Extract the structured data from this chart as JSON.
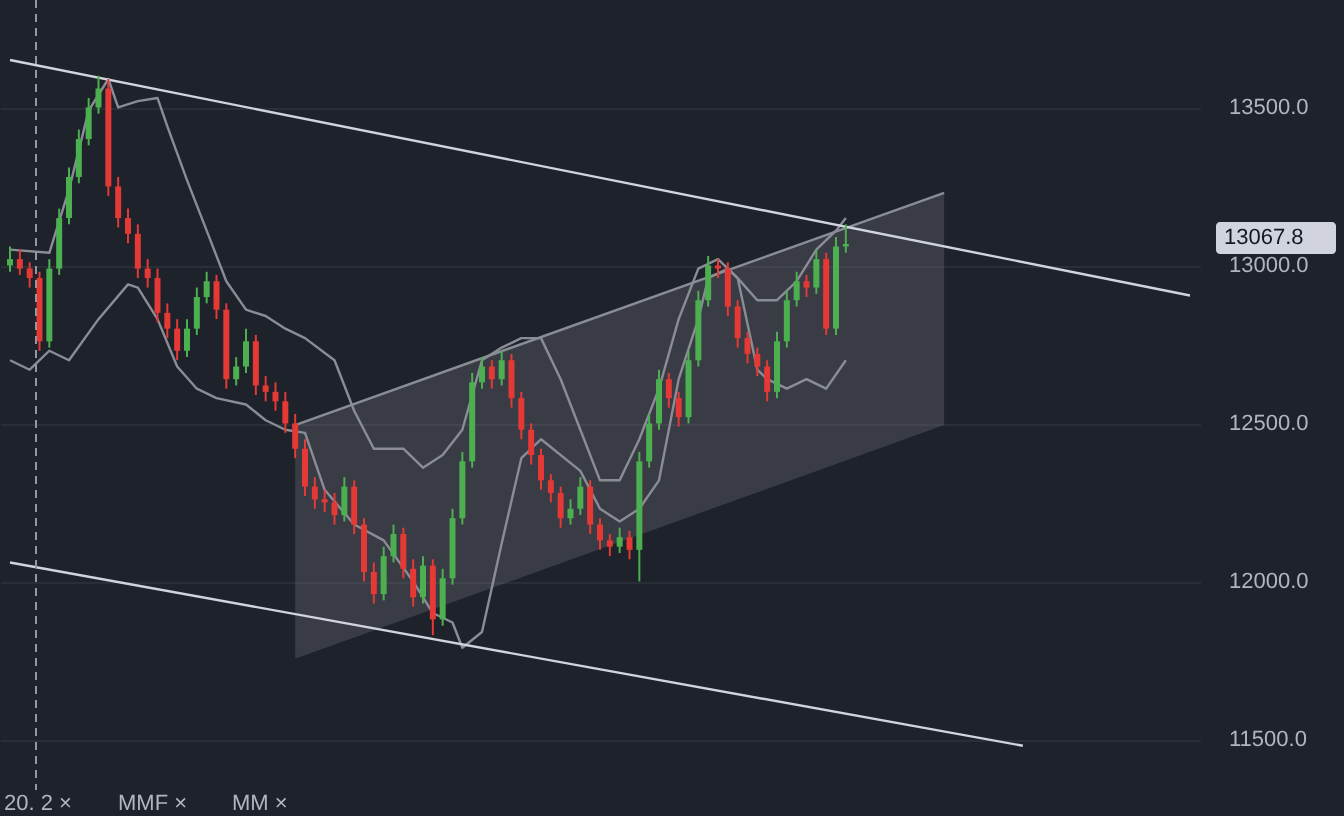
{
  "chart_data": {
    "type": "candlestick",
    "categories": [
      null,
      null,
      null,
      null,
      null,
      null,
      null,
      null,
      null,
      null,
      null,
      null,
      null,
      null,
      null,
      null,
      null,
      null,
      null,
      null,
      null,
      null,
      null,
      null,
      null,
      null,
      null,
      null,
      null,
      null,
      null,
      null,
      null,
      null,
      null,
      null,
      null,
      null,
      null,
      null,
      null,
      null,
      null,
      null,
      null,
      null,
      null,
      null,
      null,
      null,
      null,
      null,
      null,
      null,
      null,
      null,
      null,
      null,
      null,
      null,
      null,
      null,
      null,
      null,
      null,
      null,
      null,
      null,
      null,
      null,
      null,
      null,
      null,
      null,
      null,
      null,
      null,
      null,
      null,
      null,
      null,
      null,
      null,
      null,
      null,
      null,
      null,
      null,
      null,
      null,
      null,
      null,
      null,
      null,
      null,
      null,
      null,
      null,
      null,
      null,
      null,
      null,
      null,
      null,
      null,
      null,
      null,
      null,
      null,
      null,
      null,
      null,
      null,
      null,
      null,
      null,
      null,
      null,
      null,
      null,
      null
    ],
    "ohlc": [
      [
        13000,
        13060,
        12980,
        13020
      ],
      [
        13020,
        13050,
        12970,
        12990
      ],
      [
        12990,
        13010,
        12930,
        12960
      ],
      [
        12960,
        12980,
        12730,
        12760
      ],
      [
        12760,
        13020,
        12740,
        12990
      ],
      [
        12990,
        13180,
        12970,
        13150
      ],
      [
        13150,
        13310,
        13130,
        13280
      ],
      [
        13280,
        13430,
        13260,
        13400
      ],
      [
        13400,
        13530,
        13380,
        13500
      ],
      [
        13500,
        13600,
        13480,
        13560
      ],
      [
        13560,
        13590,
        13220,
        13250
      ],
      [
        13250,
        13280,
        13120,
        13150
      ],
      [
        13150,
        13180,
        13070,
        13100
      ],
      [
        13100,
        13130,
        12960,
        12990
      ],
      [
        12990,
        13020,
        12930,
        12960
      ],
      [
        12960,
        12990,
        12820,
        12850
      ],
      [
        12850,
        12880,
        12770,
        12800
      ],
      [
        12800,
        12830,
        12700,
        12730
      ],
      [
        12730,
        12830,
        12710,
        12800
      ],
      [
        12800,
        12930,
        12780,
        12900
      ],
      [
        12900,
        12980,
        12880,
        12950
      ],
      [
        12950,
        12970,
        12830,
        12860
      ],
      [
        12860,
        12880,
        12610,
        12640
      ],
      [
        12640,
        12710,
        12620,
        12680
      ],
      [
        12680,
        12800,
        12660,
        12760
      ],
      [
        12760,
        12780,
        12590,
        12620
      ],
      [
        12620,
        12650,
        12570,
        12600
      ],
      [
        12600,
        12630,
        12540,
        12570
      ],
      [
        12570,
        12600,
        12470,
        12500
      ],
      [
        12500,
        12530,
        12390,
        12420
      ],
      [
        12420,
        12450,
        12270,
        12300
      ],
      [
        12300,
        12330,
        12230,
        12260
      ],
      [
        12260,
        12290,
        12220,
        12250
      ],
      [
        12250,
        12280,
        12180,
        12210
      ],
      [
        12210,
        12330,
        12190,
        12300
      ],
      [
        12300,
        12320,
        12150,
        12180
      ],
      [
        12180,
        12200,
        12000,
        12030
      ],
      [
        12030,
        12060,
        11930,
        11960
      ],
      [
        11960,
        12110,
        11940,
        12080
      ],
      [
        12080,
        12180,
        12060,
        12150
      ],
      [
        12150,
        12170,
        12010,
        12040
      ],
      [
        12040,
        12070,
        11920,
        11950
      ],
      [
        11950,
        12080,
        11930,
        12050
      ],
      [
        12050,
        12070,
        11830,
        11880
      ],
      [
        11880,
        12040,
        11860,
        12010
      ],
      [
        12010,
        12230,
        11990,
        12200
      ],
      [
        12200,
        12410,
        12180,
        12380
      ],
      [
        12380,
        12660,
        12360,
        12630
      ],
      [
        12630,
        12710,
        12610,
        12680
      ],
      [
        12680,
        12700,
        12610,
        12640
      ],
      [
        12640,
        12730,
        12620,
        12700
      ],
      [
        12700,
        12720,
        12550,
        12580
      ],
      [
        12580,
        12600,
        12450,
        12480
      ],
      [
        12480,
        12500,
        12370,
        12400
      ],
      [
        12400,
        12420,
        12290,
        12320
      ],
      [
        12320,
        12340,
        12250,
        12280
      ],
      [
        12280,
        12300,
        12170,
        12200
      ],
      [
        12200,
        12260,
        12180,
        12230
      ],
      [
        12230,
        12330,
        12210,
        12300
      ],
      [
        12300,
        12320,
        12150,
        12180
      ],
      [
        12180,
        12200,
        12100,
        12130
      ],
      [
        12130,
        12150,
        12080,
        12110
      ],
      [
        12110,
        12170,
        12090,
        12140
      ],
      [
        12140,
        12160,
        12070,
        12100
      ],
      [
        12100,
        12410,
        12000,
        12380
      ],
      [
        12380,
        12530,
        12360,
        12500
      ],
      [
        12500,
        12670,
        12480,
        12640
      ],
      [
        12640,
        12660,
        12550,
        12580
      ],
      [
        12580,
        12600,
        12490,
        12520
      ],
      [
        12520,
        12730,
        12500,
        12700
      ],
      [
        12700,
        12920,
        12680,
        12890
      ],
      [
        12890,
        13030,
        12870,
        13000
      ],
      [
        13000,
        13020,
        12960,
        12990
      ],
      [
        12990,
        13010,
        12840,
        12870
      ],
      [
        12870,
        12890,
        12740,
        12770
      ],
      [
        12770,
        12790,
        12690,
        12720
      ],
      [
        12720,
        12740,
        12650,
        12680
      ],
      [
        12680,
        12700,
        12570,
        12600
      ],
      [
        12600,
        12790,
        12580,
        12760
      ],
      [
        12760,
        12920,
        12740,
        12890
      ],
      [
        12890,
        12980,
        12870,
        12950
      ],
      [
        12950,
        12970,
        12900,
        12930
      ],
      [
        12930,
        13050,
        12910,
        13020
      ],
      [
        13020,
        13040,
        12780,
        12800
      ],
      [
        12800,
        13090,
        12780,
        13060
      ],
      [
        13060,
        13130,
        13040,
        13067.8
      ],
      null,
      null,
      null,
      null,
      null,
      null,
      null,
      null,
      null,
      null,
      null,
      null,
      null,
      null,
      null,
      null,
      null,
      null,
      null,
      null,
      null,
      null,
      null,
      null,
      null,
      null,
      null,
      null,
      null,
      null,
      null,
      null,
      null,
      null,
      null
    ],
    "series": [
      {
        "type": "line",
        "color": "#8a8d96",
        "upper": [
          null,
          null,
          null,
          null,
          null,
          null,
          null,
          null,
          null,
          null,
          null,
          null,
          null,
          null,
          null,
          null,
          null,
          null,
          null,
          null,
          null,
          null,
          null,
          null,
          null,
          null,
          null,
          null,
          null,
          12495,
          null,
          null,
          null,
          null,
          null,
          null,
          null,
          null,
          null,
          null,
          null,
          null,
          null,
          null,
          null,
          null,
          null,
          null,
          null,
          null,
          null,
          null,
          null,
          null,
          null,
          null,
          null,
          null,
          null,
          null,
          null,
          null,
          null,
          null,
          null,
          null,
          null,
          null,
          null,
          null,
          null,
          null,
          null,
          null,
          null,
          null,
          null,
          null,
          null,
          null,
          null,
          null,
          null,
          null,
          null,
          null,
          null,
          null,
          null,
          null,
          null,
          null,
          null,
          null,
          null,
          13230,
          null,
          null,
          null,
          null,
          null,
          null,
          null,
          null,
          null,
          null,
          null,
          null,
          null,
          null,
          null,
          null,
          null,
          null,
          null,
          null,
          null,
          null,
          null,
          null,
          null
        ],
        "values": [
          null,
          null,
          null,
          null,
          null,
          null,
          null,
          null,
          null,
          null,
          null,
          null,
          null,
          null,
          null,
          null,
          null,
          null,
          null,
          null,
          null,
          null,
          null,
          null,
          null,
          null,
          null,
          null,
          null,
          12495,
          null,
          null,
          null,
          null,
          null,
          null,
          null,
          null,
          null,
          null,
          null,
          null,
          null,
          null,
          null,
          null,
          null,
          null,
          null,
          null,
          null,
          null,
          null,
          null,
          null,
          null,
          null,
          null,
          null,
          null,
          null,
          null,
          null,
          null,
          null,
          null,
          null,
          null,
          null,
          null,
          null,
          null,
          null,
          null,
          null,
          null,
          null,
          null,
          null,
          null,
          null,
          null,
          null,
          null,
          null,
          null,
          null,
          null,
          null,
          null,
          null,
          null,
          null,
          null,
          null,
          13230,
          null,
          null,
          null,
          null,
          null,
          null,
          null,
          null,
          null,
          null,
          null,
          null,
          null,
          null,
          null,
          null,
          null,
          null,
          null,
          null,
          null,
          null,
          null,
          null,
          null
        ],
        "lower": [
          null,
          null,
          null,
          null,
          null,
          null,
          null,
          null,
          null,
          null,
          null,
          null,
          null,
          null,
          null,
          null,
          null,
          null,
          null,
          null,
          null,
          null,
          null,
          null,
          null,
          null,
          null,
          null,
          null,
          11755,
          null,
          null,
          null,
          null,
          null,
          null,
          null,
          null,
          null,
          null,
          null,
          null,
          null,
          null,
          null,
          null,
          null,
          null,
          null,
          null,
          null,
          null,
          null,
          null,
          null,
          null,
          null,
          null,
          null,
          null,
          null,
          null,
          null,
          null,
          null,
          null,
          null,
          null,
          null,
          null,
          null,
          null,
          null,
          null,
          null,
          null,
          null,
          null,
          null,
          null,
          null,
          null,
          null,
          null,
          null,
          null,
          null,
          null,
          null,
          null,
          null,
          null,
          null,
          null,
          null,
          12495,
          null,
          null,
          null,
          null,
          null,
          null,
          null,
          null,
          null,
          null,
          null,
          null,
          null,
          null,
          null,
          null,
          null,
          null,
          null,
          null,
          null,
          null,
          null,
          null,
          null
        ]
      },
      {
        "type": "line",
        "color": "#8a8d96",
        "values": [
          13050,
          null,
          null,
          null,
          13040,
          null,
          13240,
          null,
          13490,
          null,
          13590,
          13500,
          null,
          13520,
          null,
          13530,
          13440,
          null,
          13270,
          null,
          13110,
          null,
          12950,
          null,
          12860,
          null,
          12840,
          null,
          12800,
          null,
          12770,
          null,
          null,
          12700,
          null,
          12540,
          null,
          12420,
          null,
          null,
          12420,
          null,
          12360,
          null,
          12400,
          null,
          12480,
          null,
          12700,
          null,
          12740,
          null,
          12770,
          null,
          12770,
          null,
          12640,
          null,
          12480,
          null,
          12320,
          null,
          12320,
          null,
          12450,
          null,
          12610,
          null,
          12830,
          null,
          12990,
          null,
          13020,
          null,
          12960,
          null,
          12890,
          null,
          12890,
          null,
          12950,
          null,
          13050,
          null,
          13110,
          13150,
          null,
          null,
          null,
          null,
          null,
          null,
          null,
          null,
          null,
          null,
          null,
          null,
          null,
          null,
          null,
          null,
          null,
          null,
          null,
          null,
          null,
          null,
          null,
          null,
          null,
          null,
          null,
          null,
          null,
          null,
          null,
          null,
          null,
          null,
          null
        ]
      },
      {
        "type": "line",
        "color": "#8a8d96",
        "values": [
          12700,
          null,
          12670,
          null,
          12730,
          null,
          12700,
          null,
          null,
          12830,
          null,
          null,
          12940,
          12930,
          null,
          12830,
          null,
          12680,
          null,
          12610,
          null,
          12580,
          null,
          null,
          12560,
          null,
          12510,
          null,
          12480,
          null,
          12470,
          null,
          12290,
          null,
          null,
          12180,
          null,
          null,
          12130,
          null,
          null,
          12000,
          null,
          11900,
          null,
          11870,
          11790,
          null,
          11840,
          null,
          12120,
          null,
          12390,
          null,
          12450,
          null,
          null,
          null,
          12350,
          null,
          12230,
          null,
          12190,
          null,
          12230,
          null,
          12320,
          null,
          12640,
          null,
          12830,
          12960,
          null,
          12990,
          12960,
          null,
          12670,
          12640,
          null,
          12610,
          null,
          12640,
          null,
          12610,
          null,
          12700,
          null,
          null,
          null,
          null,
          null,
          null,
          null,
          null,
          null,
          null,
          null,
          null,
          null,
          null,
          null,
          null,
          null,
          null,
          null,
          null,
          null,
          null,
          null,
          null,
          null,
          null,
          null,
          null,
          null,
          null,
          null,
          null,
          null,
          null,
          null
        ]
      },
      {
        "type": "line",
        "color": "#d1d4dc",
        "values": [
          13650,
          null,
          null,
          null,
          null,
          null,
          null,
          null,
          null,
          null,
          null,
          null,
          null,
          null,
          null,
          null,
          null,
          null,
          null,
          null,
          null,
          null,
          null,
          null,
          null,
          null,
          null,
          null,
          null,
          null,
          null,
          null,
          null,
          null,
          null,
          null,
          null,
          null,
          null,
          null,
          null,
          null,
          null,
          null,
          null,
          null,
          null,
          null,
          null,
          null,
          null,
          null,
          null,
          null,
          null,
          null,
          null,
          null,
          null,
          null,
          null,
          null,
          null,
          null,
          null,
          null,
          null,
          null,
          null,
          null,
          null,
          null,
          null,
          null,
          null,
          null,
          null,
          null,
          null,
          null,
          null,
          null,
          null,
          null,
          null,
          null,
          null,
          null,
          null,
          null,
          null,
          null,
          null,
          null,
          null,
          null,
          null,
          null,
          null,
          null,
          null,
          null,
          null,
          null,
          null,
          null,
          null,
          null,
          null,
          null,
          null,
          null,
          null,
          null,
          null,
          null,
          null,
          null,
          null,
          null,
          12905
        ]
      },
      {
        "type": "line",
        "color": "#d1d4dc",
        "values": [
          12060,
          null,
          null,
          null,
          null,
          null,
          null,
          null,
          null,
          null,
          null,
          null,
          null,
          null,
          null,
          null,
          null,
          null,
          null,
          null,
          null,
          null,
          null,
          null,
          null,
          null,
          null,
          null,
          null,
          null,
          null,
          null,
          null,
          null,
          null,
          null,
          null,
          null,
          null,
          null,
          null,
          null,
          null,
          null,
          null,
          null,
          null,
          null,
          null,
          null,
          null,
          null,
          null,
          null,
          null,
          null,
          null,
          null,
          null,
          null,
          null,
          null,
          null,
          null,
          null,
          null,
          null,
          null,
          null,
          null,
          null,
          null,
          null,
          null,
          null,
          null,
          null,
          null,
          null,
          null,
          null,
          null,
          null,
          null,
          null,
          null,
          null,
          null,
          null,
          null,
          null,
          null,
          null,
          null,
          null,
          null,
          null,
          null,
          null,
          null,
          null,
          null,
          null,
          11480,
          null,
          null,
          null,
          null,
          null,
          null,
          null,
          null,
          null,
          null,
          null,
          null,
          null,
          null,
          null,
          null,
          null
        ]
      }
    ],
    "ylim": [
      11340,
      13840
    ],
    "yticks": [
      {
        "value": 11500,
        "label": "11500.0"
      },
      {
        "value": 12000,
        "label": "12000.0"
      },
      {
        "value": 12500,
        "label": "12500.0"
      },
      {
        "value": 13000,
        "label": "13000.0"
      },
      {
        "value": 13500,
        "label": "13500.0"
      }
    ],
    "grid": "y",
    "tick_labels": "y",
    "annotations": [
      "13067.8",
      "20. 2 ×",
      "MMF ×",
      "MM ×"
    ]
  }
}
